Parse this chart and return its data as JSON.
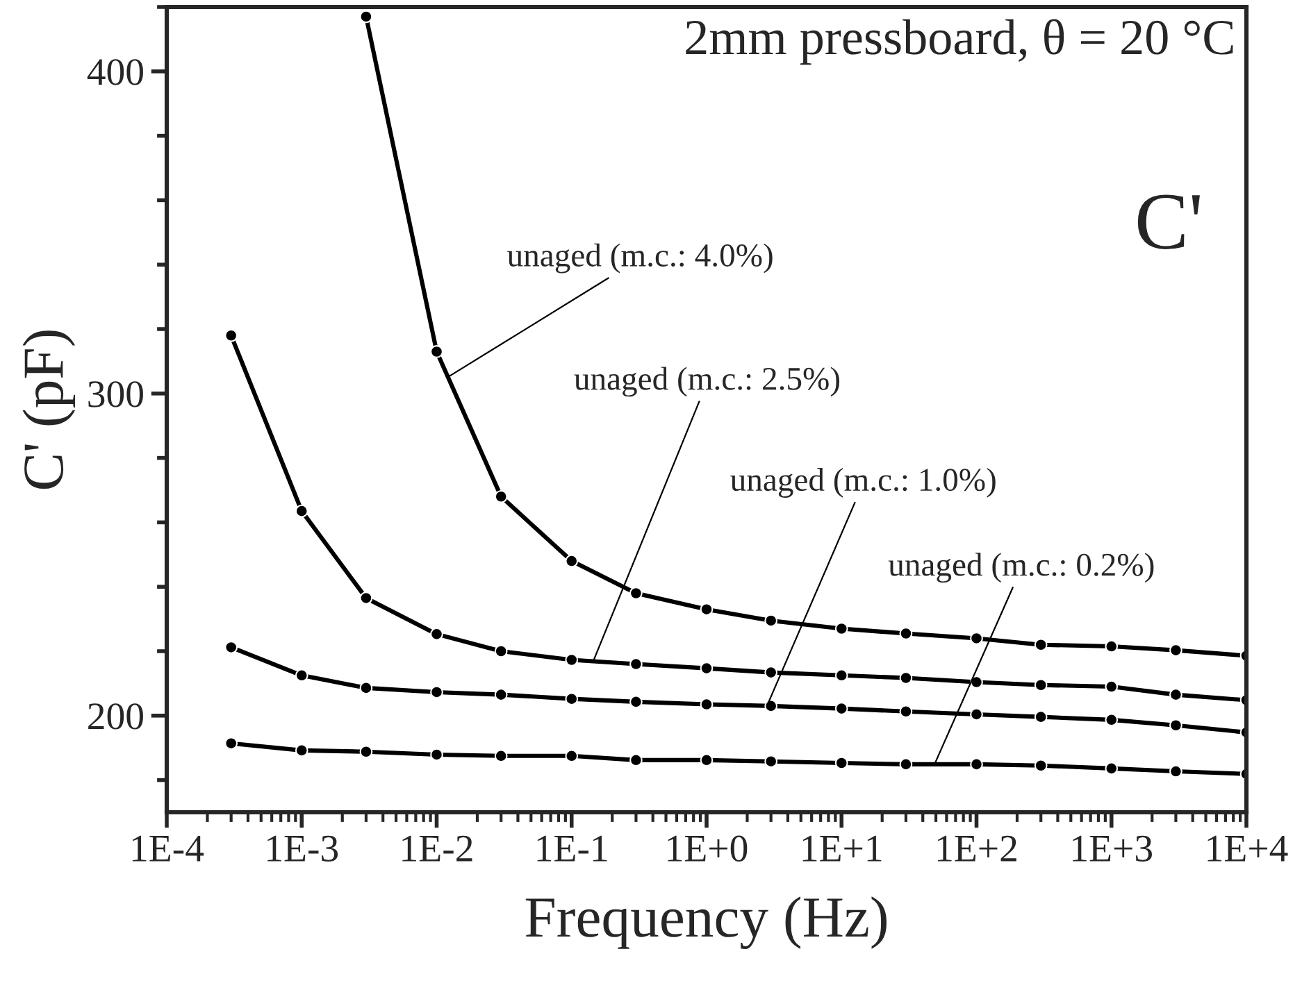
{
  "chart_data": {
    "type": "line",
    "xlabel": "Frequency (Hz)",
    "ylabel": "C' (pF)",
    "log": "x",
    "marker": "circle",
    "line_style": "solid",
    "grid": false,
    "xlim": [
      0.0001,
      10000
    ],
    "ylim": [
      170,
      420
    ],
    "xticks": [
      {
        "value": 0.0001,
        "label": "1E-4"
      },
      {
        "value": 0.001,
        "label": "1E-3"
      },
      {
        "value": 0.01,
        "label": "1E-2"
      },
      {
        "value": 0.1,
        "label": "1E-1"
      },
      {
        "value": 1,
        "label": "1E+0"
      },
      {
        "value": 10,
        "label": "1E+1"
      },
      {
        "value": 100,
        "label": "1E+2"
      },
      {
        "value": 1000,
        "label": "1E+3"
      },
      {
        "value": 10000,
        "label": "1E+4"
      }
    ],
    "yticks": [
      {
        "value": 180,
        "label": null
      },
      200,
      {
        "value": 220,
        "label": null
      },
      {
        "value": 240,
        "label": null
      },
      {
        "value": 260,
        "label": null
      },
      {
        "value": 280,
        "label": null
      },
      300,
      {
        "value": 320,
        "label": null
      },
      {
        "value": 340,
        "label": null
      },
      {
        "value": 360,
        "label": null
      },
      {
        "value": 380,
        "label": null
      },
      400,
      {
        "value": 420,
        "label": null
      }
    ],
    "annotations": [
      "2mm pressboard, θ = 20 °C",
      "C'",
      {
        "text": "unaged (m.c.: 4.0%)",
        "x": 0.012,
        "y": 305
      },
      {
        "text": "unaged (m.c.: 2.5%)",
        "x": 0.145,
        "y": 217
      },
      {
        "text": "unaged (m.c.: 1.0%)",
        "x": 2.8,
        "y": 203
      },
      {
        "text": "unaged (m.c.: 0.2%)",
        "x": 49,
        "y": 185
      }
    ],
    "series": [
      {
        "color": "#000000",
        "x": [
          0.003,
          0.01,
          0.03,
          0.1,
          0.3,
          1,
          3,
          10,
          30,
          100,
          300,
          1000,
          3000,
          10000
        ],
        "values": [
          417,
          313,
          268,
          248,
          238,
          233,
          229.5,
          227,
          225.5,
          224,
          222,
          221.5,
          220.3,
          218.6
        ]
      },
      {
        "color": "#000000",
        "x": [
          0.0003,
          0.001,
          0.003,
          0.01,
          0.03,
          0.1,
          0.3,
          1,
          3,
          10,
          30,
          100,
          300,
          1000,
          3000,
          10000
        ],
        "values": [
          318,
          263.5,
          236.5,
          225.3,
          220,
          217.3,
          216,
          214.7,
          213.4,
          212.5,
          211.7,
          210.4,
          209.5,
          209,
          206.5,
          204.8
        ]
      },
      {
        "color": "#000000",
        "x": [
          0.0003,
          0.001,
          0.003,
          0.01,
          0.03,
          0.1,
          0.3,
          1,
          3,
          10,
          30,
          100,
          300,
          1000,
          3000,
          10000
        ],
        "values": [
          221.2,
          212.5,
          208.6,
          207.3,
          206.5,
          205.2,
          204.3,
          203.5,
          203,
          202.2,
          201.3,
          200.4,
          199.6,
          198.7,
          197,
          194.8
        ]
      },
      {
        "color": "#000000",
        "x": [
          0.0003,
          0.001,
          0.003,
          0.01,
          0.03,
          0.1,
          0.3,
          1,
          3,
          10,
          30,
          100,
          300,
          1000,
          3000,
          10000
        ],
        "values": [
          191.4,
          189.2,
          188.8,
          187.9,
          187.5,
          187.5,
          186.2,
          186.2,
          185.8,
          185.3,
          184.9,
          184.9,
          184.5,
          183.6,
          182.7,
          181.9
        ]
      }
    ]
  }
}
